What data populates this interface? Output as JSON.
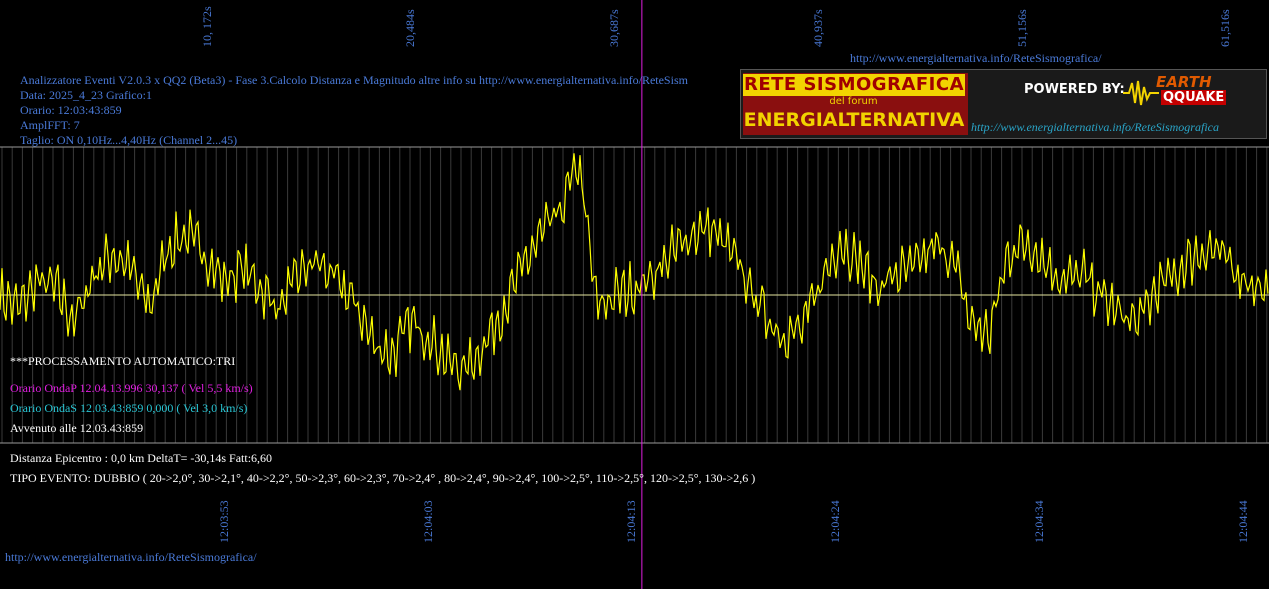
{
  "header": {
    "top_url": "http://www.energialternativa.info/ReteSismografica/",
    "line1": "Analizzatore Eventi V2.0.3 x QQ2 (Beta3) - Fase 3.Calcolo Distanza e Magnitudo altre info su http://www.energialternativa.info/ReteSism",
    "line2": "Data: 2025_4_23 Grafico:1",
    "line3": "Orario: 12:03:43:859",
    "line4": "AmplFFT: 7",
    "line5": "Taglio: ON 0,10Hz...4,40Hz       (Channel 2...45)"
  },
  "logo": {
    "title_top": "RETE SISMOGRAFICA",
    "subtitle": "del forum",
    "title_bottom": "ENERGIALTERNATIVA",
    "powered": "POWERED BY:",
    "eq_top": "EARTH",
    "eq_bottom": "QQUAKE",
    "url": "http://www.energialternativa.info/ReteSismografica"
  },
  "processing": {
    "auto": "***PROCESSAMENTO AUTOMATICO:TRI",
    "onda_p": "Orario OndaP 12.04.13.996  30,137 ( Vel 5,5 km/s)",
    "onda_s": "Orario OndaS 12.03.43:859  0,000 ( Vel 3,0 km/s)",
    "avvenuto": "Avvenuto alle 12.03.43:859"
  },
  "results": {
    "distanza": "Distanza Epicentro : 0,0 km DeltaT= -30,14s  Fatt:6,60",
    "tipo": "TIPO EVENTO: DUBBIO ( 20->2,0°, 30->2,1°, 40->2,2°, 50->2,3°, 60->2,3°, 70->2,4° , 80->2,4°, 90->2,4°, 100->2,5°, 110->2,5°, 120->2,5°, 130->2,6 )"
  },
  "footer_url": "http://www.energialternativa.info/ReteSismografica/",
  "colors": {
    "background": "#000000",
    "trace": "#ffff00",
    "baseline": "#e6e6a0",
    "marker": "#e01ee0",
    "grid": "#3a3a3a",
    "axis_labels": "#4a7ad8"
  },
  "chart_data": {
    "type": "line",
    "top_ticks": [
      "10, 172s",
      "20,484s",
      "30,687s",
      "40,937s",
      "51,156s",
      "61,516s"
    ],
    "bottom_ticks": [
      "12:03:53",
      "12:04:03",
      "12:04:13",
      "12:04:24",
      "12:04:34",
      "12:04:44"
    ],
    "x_range_seconds": [
      0,
      62.3
    ],
    "p_wave_marker_seconds": 30.137,
    "y_range": [
      -1,
      1
    ],
    "grid": true,
    "series": [
      {
        "values_envelope": [
          0.0,
          -0.1,
          0.1,
          0.05,
          -0.2,
          0.15,
          0.3,
          0.2,
          -0.1,
          0.35,
          0.45,
          0.3,
          0.1,
          0.2,
          0.05,
          -0.1,
          0.15,
          0.25,
          0.1,
          -0.05,
          -0.35,
          -0.45,
          -0.2,
          -0.3,
          -0.5,
          -0.55,
          -0.35,
          -0.1,
          0.2,
          0.45,
          0.6,
          1.0,
          -0.1,
          0.0,
          0.05,
          0.15,
          0.3,
          0.45,
          0.5,
          0.35,
          0.1,
          -0.15,
          -0.3,
          -0.25,
          0.1,
          0.4,
          0.25,
          0.05,
          0.15,
          0.2,
          0.35,
          0.3,
          -0.2,
          -0.3,
          0.3,
          0.4,
          0.25,
          0.1,
          0.15,
          0.0,
          -0.15,
          -0.2,
          0.05,
          0.15,
          0.3,
          0.35,
          0.2,
          0.1,
          0.0
        ]
      }
    ]
  }
}
